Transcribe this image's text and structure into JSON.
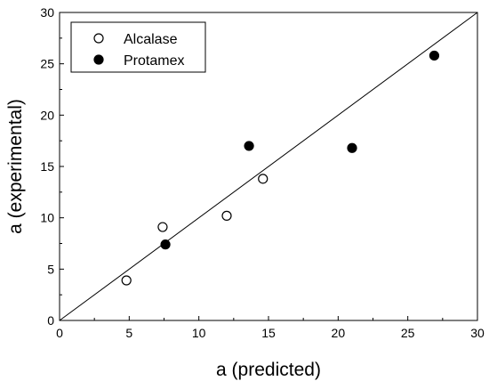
{
  "chart_data": {
    "type": "scatter",
    "xlabel": "a (predicted)",
    "ylabel": "a (experimental)",
    "xlim": [
      0,
      30
    ],
    "ylim": [
      0,
      30
    ],
    "xticks": [
      "0",
      "5",
      "10",
      "15",
      "20",
      "25",
      "30"
    ],
    "yticks": [
      "0",
      "5",
      "10",
      "15",
      "20",
      "25",
      "30"
    ],
    "grid": false,
    "legend_position": "top-left",
    "reference_line": {
      "from": [
        0,
        0
      ],
      "to": [
        30,
        30
      ]
    },
    "series": [
      {
        "name": "Alcalase",
        "marker": "open-circle",
        "points": [
          {
            "x": 4.8,
            "y": 3.9
          },
          {
            "x": 7.4,
            "y": 9.1
          },
          {
            "x": 12.0,
            "y": 10.2
          },
          {
            "x": 14.6,
            "y": 13.8
          }
        ]
      },
      {
        "name": "Protamex",
        "marker": "filled-circle",
        "points": [
          {
            "x": 7.6,
            "y": 7.4
          },
          {
            "x": 13.6,
            "y": 17.0
          },
          {
            "x": 21.0,
            "y": 16.8
          },
          {
            "x": 26.9,
            "y": 25.8
          }
        ]
      }
    ]
  }
}
